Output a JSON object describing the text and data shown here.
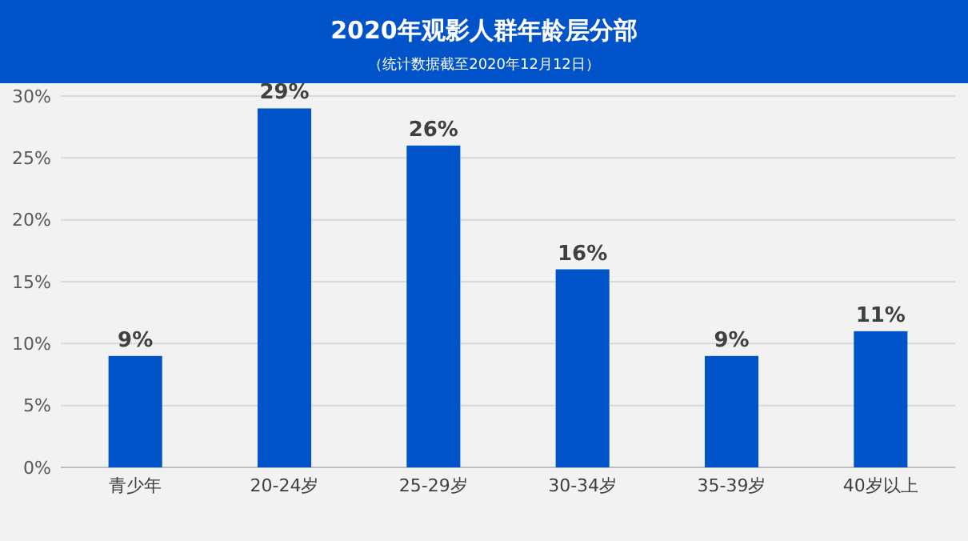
{
  "chart_data": {
    "type": "bar",
    "title": "2020年观影人群年龄层分部",
    "subtitle": "（统计数据截至2020年12月12日）",
    "categories": [
      "青少年",
      "20-24岁",
      "25-29岁",
      "30-34岁",
      "35-39岁",
      "40岁以上"
    ],
    "values": [
      9,
      29,
      26,
      16,
      9,
      11
    ],
    "color": "#0053c8",
    "value_labels": [
      "9%",
      "29%",
      "26%",
      "16%",
      "9%",
      "11%"
    ],
    "ylim": [
      0,
      30
    ],
    "yticks": [
      {
        "value": 0,
        "label": "0%"
      },
      {
        "value": 5,
        "label": "5%"
      },
      {
        "value": 10,
        "label": "10%"
      },
      {
        "value": 15,
        "label": "15%"
      },
      {
        "value": 20,
        "label": "20%"
      },
      {
        "value": 25,
        "label": "25%"
      },
      {
        "value": 30,
        "label": "30%"
      }
    ],
    "grid": "y"
  }
}
